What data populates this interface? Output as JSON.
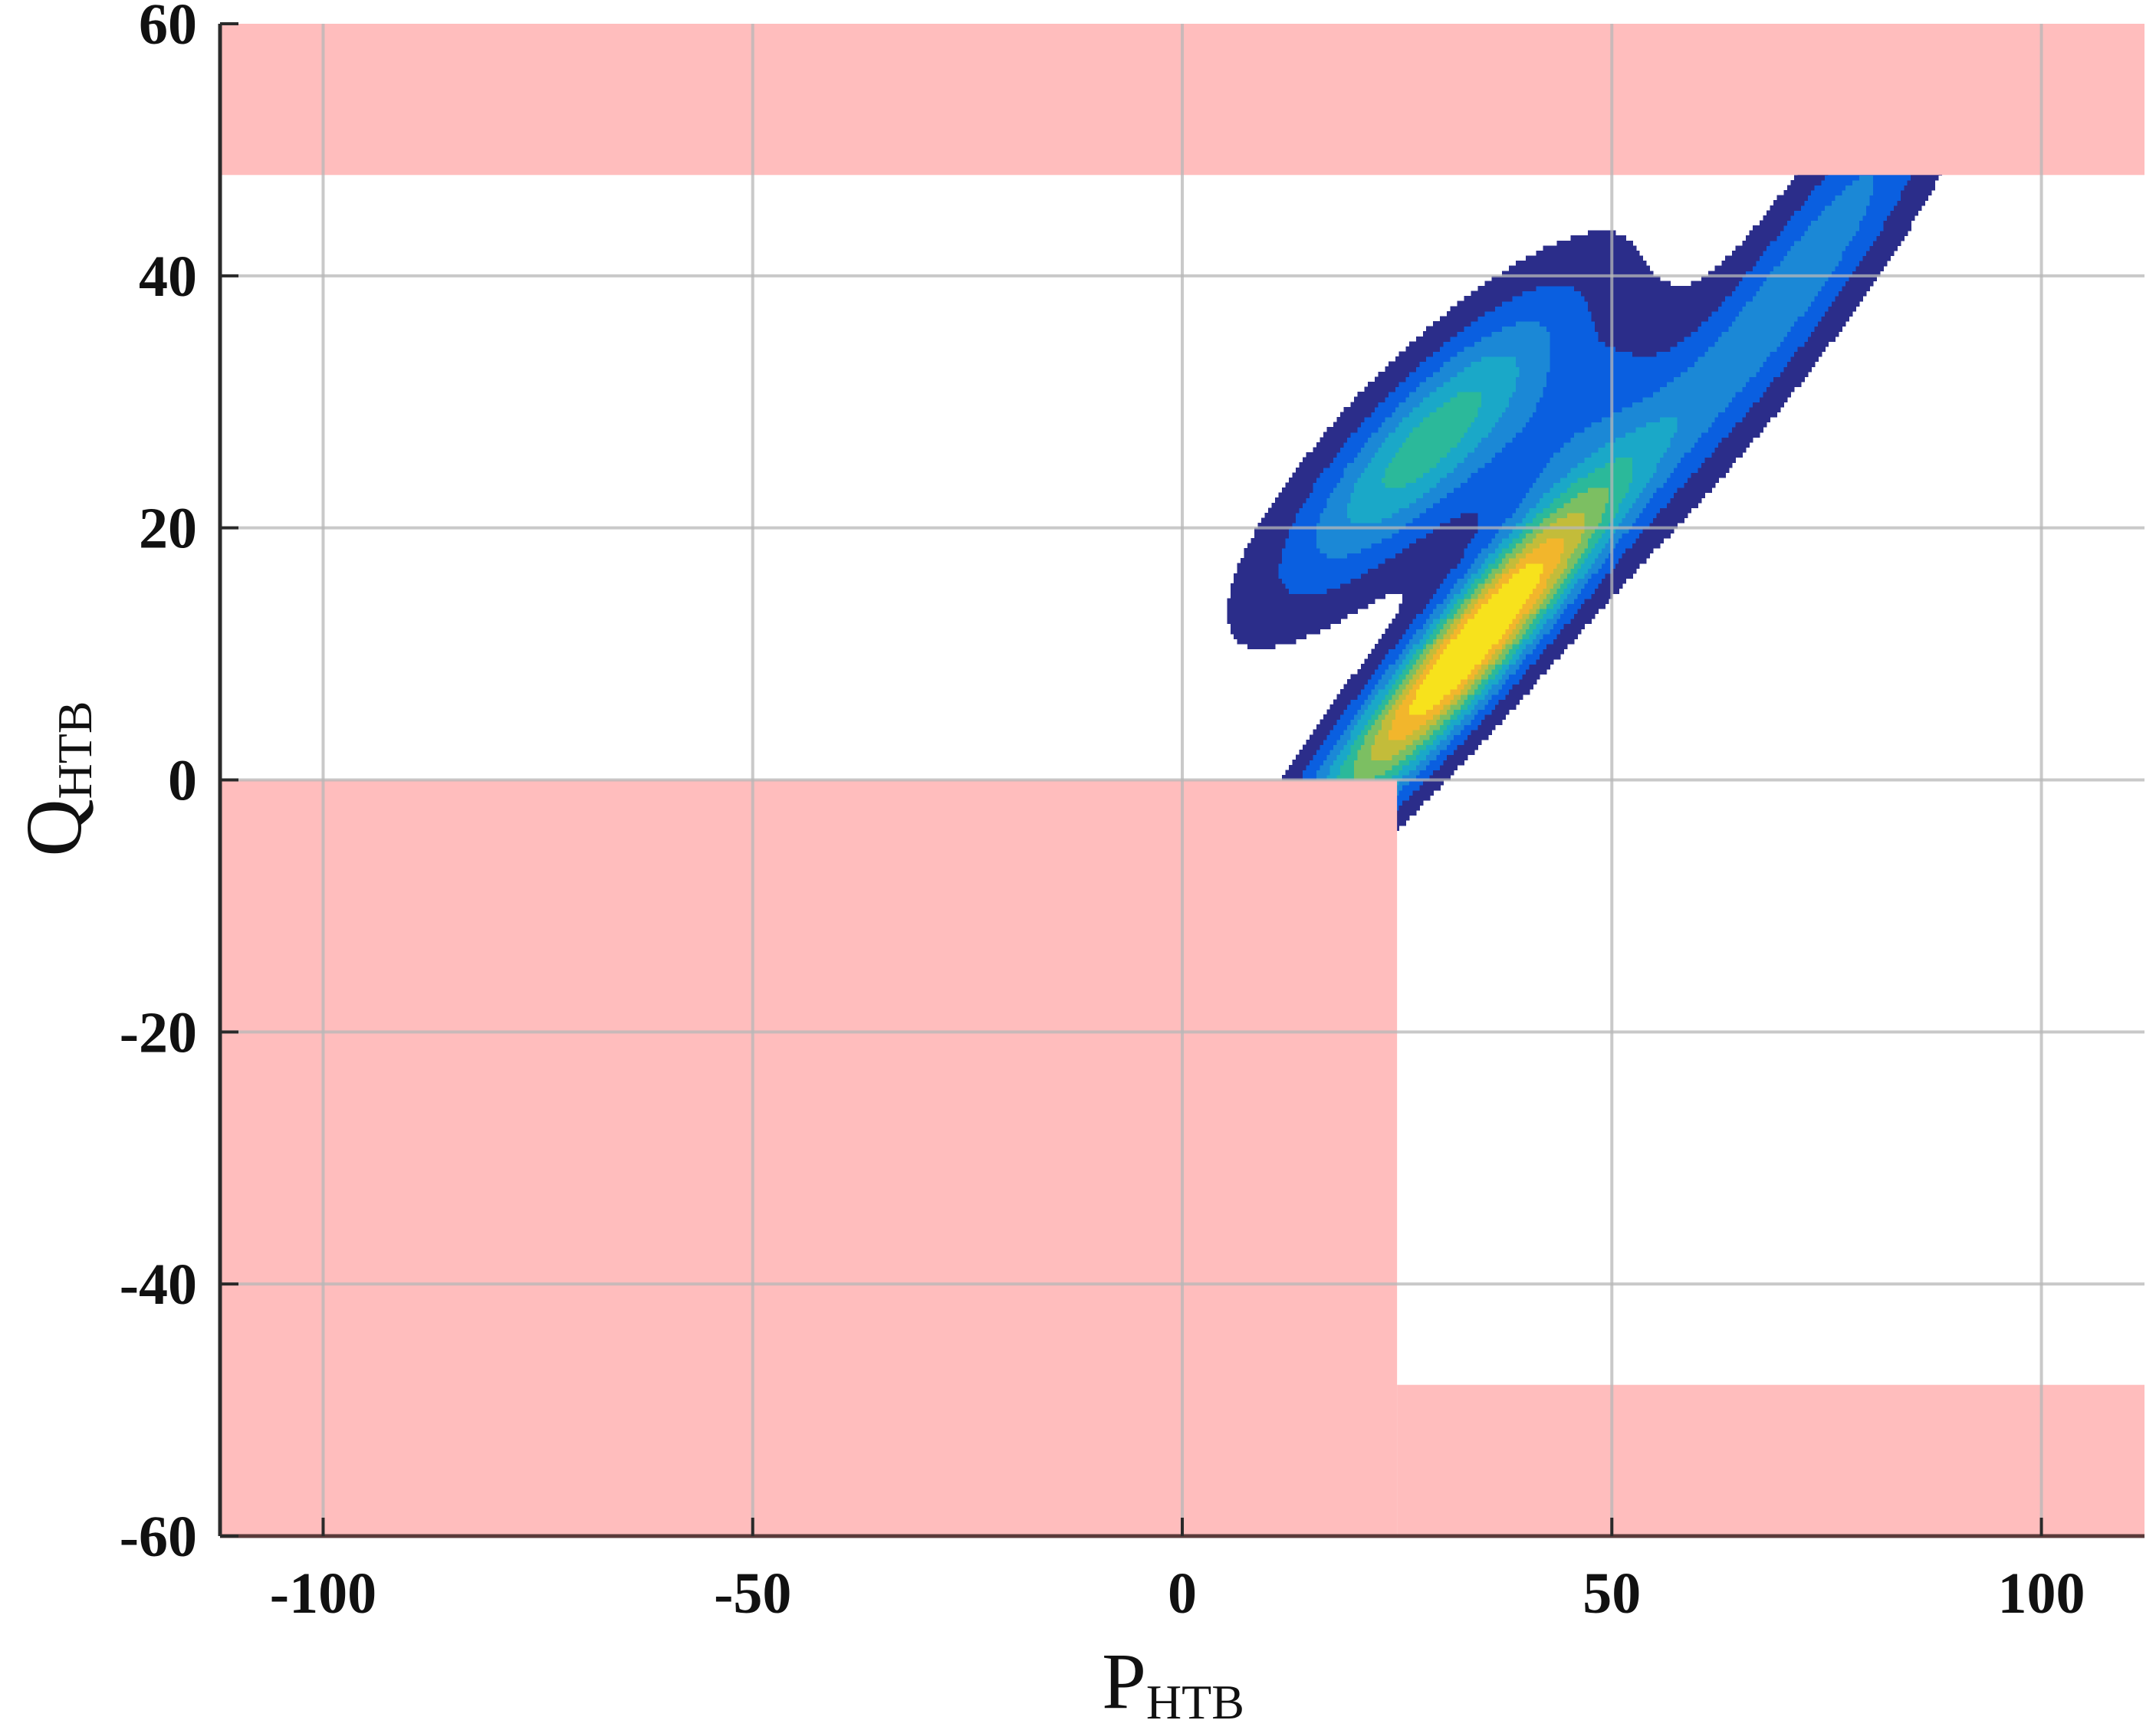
{
  "chart_data": {
    "type": "contour",
    "title": "",
    "xlabel": {
      "main": "P",
      "sub": "HTB"
    },
    "ylabel": {
      "main": "Q",
      "sub": "HTB"
    },
    "xlim": [
      -112,
      112
    ],
    "ylim": [
      -60,
      60
    ],
    "x_ticks": [
      -100,
      -50,
      0,
      50,
      100
    ],
    "y_ticks": [
      -60,
      -40,
      -20,
      0,
      20,
      40,
      60
    ],
    "x_tick_labels": [
      "-100",
      "-50",
      "0",
      "50",
      "100"
    ],
    "y_tick_labels": [
      "-60",
      "-40",
      "-20",
      "0",
      "20",
      "40",
      "60"
    ],
    "grid": true,
    "infeasible_regions": [
      {
        "name": "upper band",
        "x": [
          -112,
          112
        ],
        "y": [
          48,
          60
        ]
      },
      {
        "name": "lower-left block",
        "x": [
          -112,
          25
        ],
        "y": [
          -60,
          0
        ]
      },
      {
        "name": "lower-right band",
        "x": [
          25,
          112
        ],
        "y": [
          -60,
          -48
        ]
      }
    ],
    "infeasible_color": "#ffbdbd",
    "density_components": [
      {
        "center": [
          34,
          11
        ],
        "sd_major": 16,
        "sd_minor": 2.8,
        "angle_deg": 38,
        "weight": 1.0
      },
      {
        "center": [
          29,
          27
        ],
        "sd_major": 13,
        "sd_minor": 3.6,
        "angle_deg": 33,
        "weight": 0.5
      },
      {
        "center": [
          72,
          40
        ],
        "sd_major": 17,
        "sd_minor": 3.3,
        "angle_deg": 43,
        "weight": 0.3
      },
      {
        "center": [
          45,
          28
        ],
        "sd_major": 10,
        "sd_minor": 3.0,
        "angle_deg": 35,
        "weight": 0.17
      }
    ],
    "contour_levels": [
      0.05,
      0.14,
      0.24,
      0.34,
      0.44,
      0.54,
      0.64,
      0.74,
      0.84
    ],
    "colormap": [
      "#2b2d8a",
      "#0a5fe0",
      "#1b88d6",
      "#1aa8c8",
      "#2bb99a",
      "#7cbf62",
      "#c3bc3a",
      "#f2b62c",
      "#f7e21c"
    ]
  }
}
